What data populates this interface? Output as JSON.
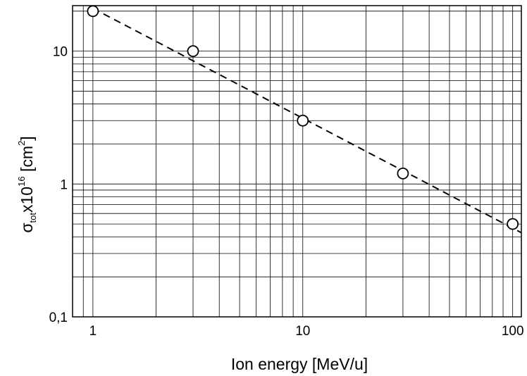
{
  "chart_data": {
    "type": "scatter",
    "title": "",
    "xlabel": "Ion energy [MeV/u]",
    "ylabel_parts": {
      "sigma": "σ",
      "subscript": "tot",
      "times": "x10",
      "exponent": "16",
      "unit_open": " [cm",
      "unit_exp": "2",
      "unit_close": "]"
    },
    "x_scale": "log",
    "y_scale": "log",
    "xlim": [
      0.8,
      110
    ],
    "ylim": [
      0.1,
      22
    ],
    "x_ticks": [
      {
        "value": 1,
        "label": "1"
      },
      {
        "value": 10,
        "label": "10"
      },
      {
        "value": 100,
        "label": "100"
      }
    ],
    "y_ticks": [
      {
        "value": 0.1,
        "label": "0,1"
      },
      {
        "value": 1,
        "label": "1"
      },
      {
        "value": 10,
        "label": "10"
      }
    ],
    "grid": true,
    "legend": "none",
    "series": [
      {
        "style": "open-circle",
        "x": [
          1,
          3,
          10,
          30,
          100
        ],
        "y": [
          20,
          10,
          3,
          1.2,
          0.5
        ]
      },
      {
        "style": "dashed-line",
        "x": [
          1,
          110
        ],
        "y": [
          21,
          0.43
        ]
      }
    ]
  }
}
